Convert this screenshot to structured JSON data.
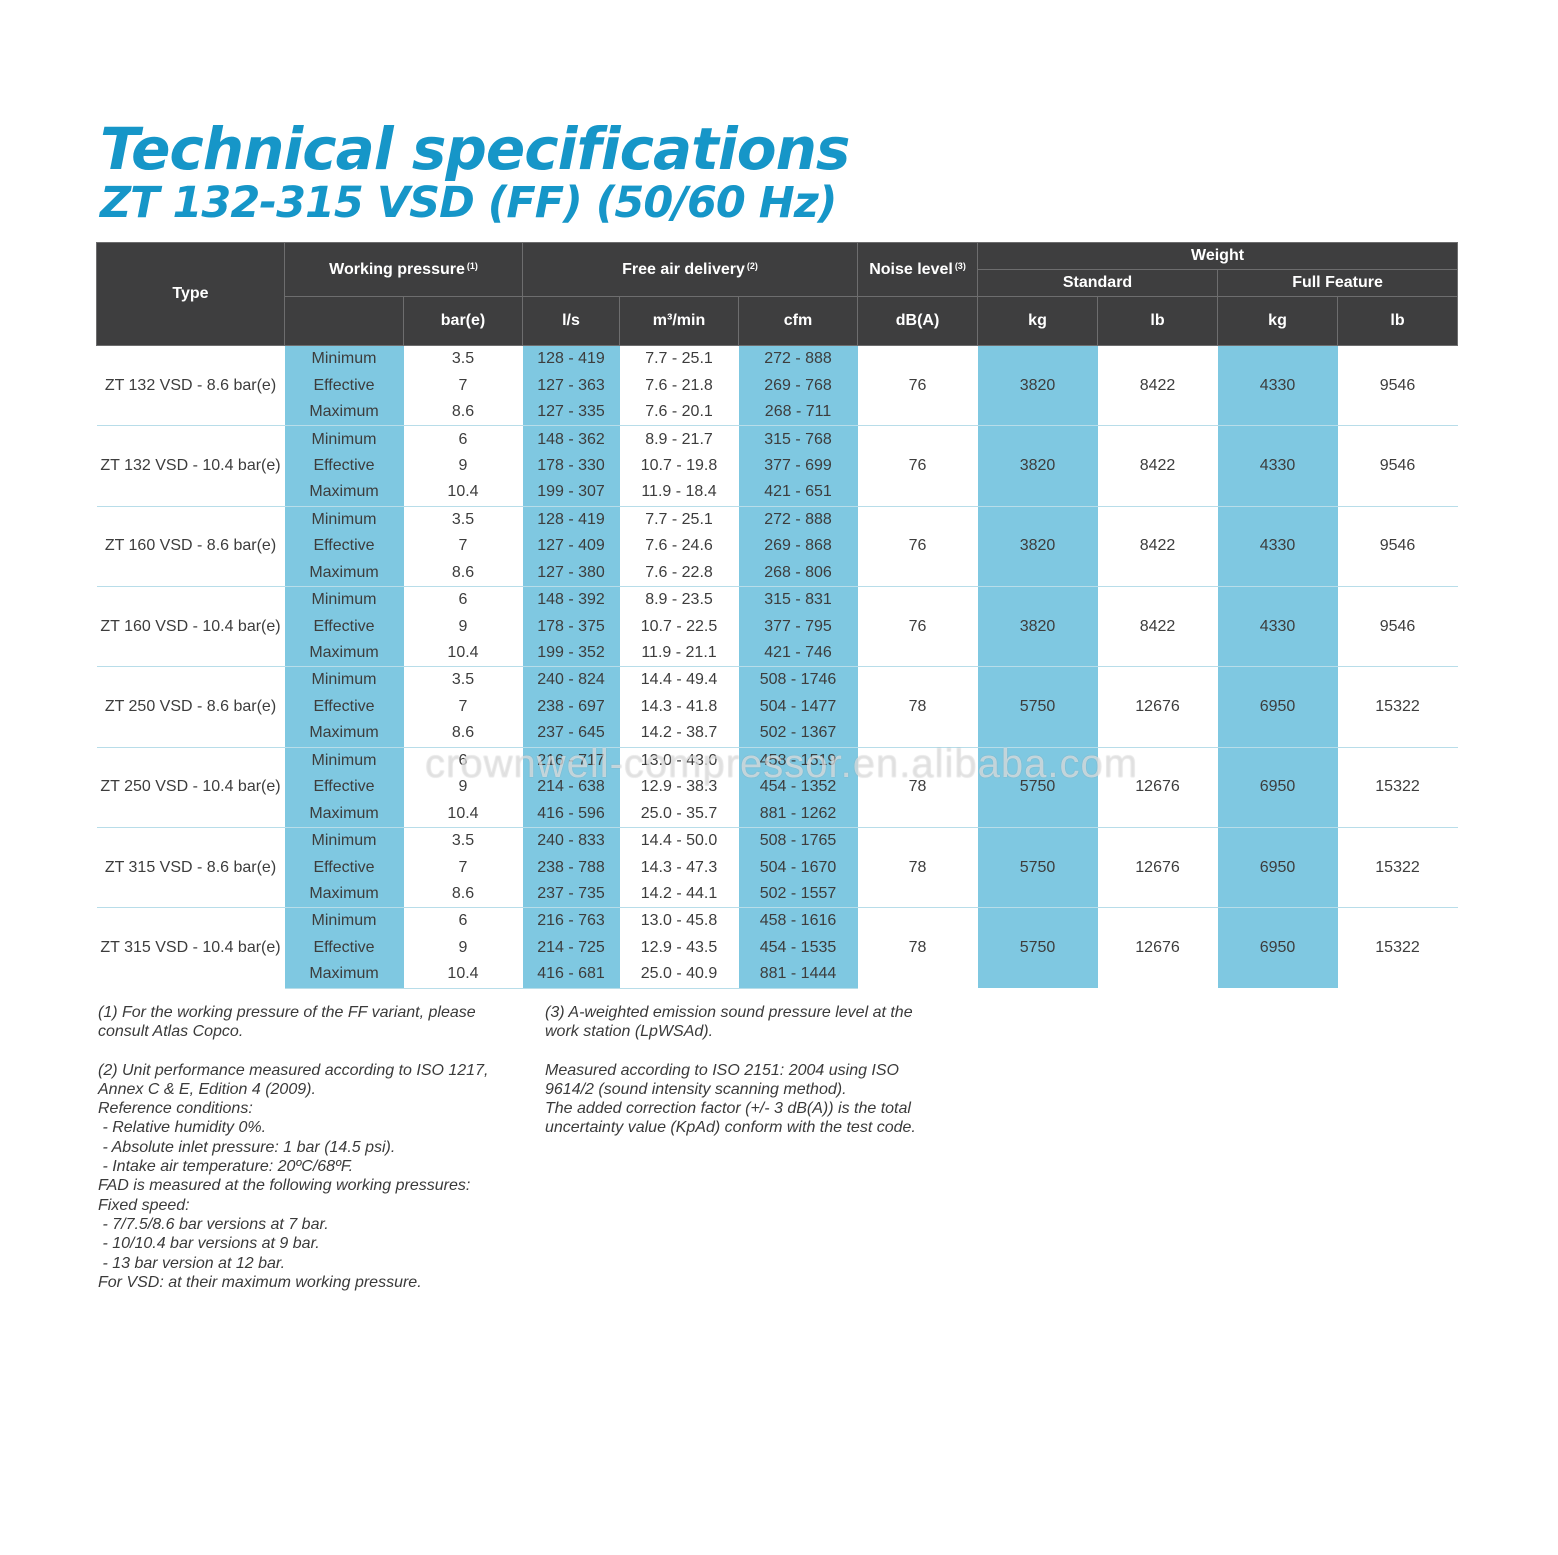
{
  "title": {
    "line1": "Technical specifications",
    "line2": "ZT 132-315 VSD (FF) (50/60 Hz)"
  },
  "header": {
    "type": "Type",
    "working_pressure": "Working pressure",
    "working_pressure_note": "(1)",
    "free_air_delivery": "Free air delivery",
    "free_air_delivery_note": "(2)",
    "noise_level": "Noise level",
    "noise_level_note": "(3)",
    "weight": "Weight",
    "standard": "Standard",
    "full_feature": "Full Feature",
    "unit_bar": "bar(e)",
    "unit_ls": "l/s",
    "unit_m3": "m³/min",
    "unit_cfm": "cfm",
    "unit_db": "dB(A)",
    "unit_kg_std": "kg",
    "unit_lb_std": "lb",
    "unit_kg_ff": "kg",
    "unit_lb_ff": "lb"
  },
  "models": [
    {
      "type": "ZT 132 VSD - 8.6 bar(e)",
      "noise": "76",
      "std_kg": "3820",
      "std_lb": "8422",
      "ff_kg": "4330",
      "ff_lb": "9546",
      "rows": [
        {
          "label": "Minimum",
          "bar": "3.5",
          "ls": "128 - 419",
          "m3": "7.7 - 25.1",
          "cfm": "272 - 888"
        },
        {
          "label": "Effective",
          "bar": "7",
          "ls": "127 - 363",
          "m3": "7.6 - 21.8",
          "cfm": "269 - 768"
        },
        {
          "label": "Maximum",
          "bar": "8.6",
          "ls": "127 - 335",
          "m3": "7.6 - 20.1",
          "cfm": "268 - 711"
        }
      ]
    },
    {
      "type": "ZT 132 VSD - 10.4 bar(e)",
      "noise": "76",
      "std_kg": "3820",
      "std_lb": "8422",
      "ff_kg": "4330",
      "ff_lb": "9546",
      "rows": [
        {
          "label": "Minimum",
          "bar": "6",
          "ls": "148 - 362",
          "m3": "8.9 - 21.7",
          "cfm": "315 - 768"
        },
        {
          "label": "Effective",
          "bar": "9",
          "ls": "178 - 330",
          "m3": "10.7 - 19.8",
          "cfm": "377 - 699"
        },
        {
          "label": "Maximum",
          "bar": "10.4",
          "ls": "199 - 307",
          "m3": "11.9 - 18.4",
          "cfm": "421 - 651"
        }
      ]
    },
    {
      "type": "ZT 160 VSD - 8.6 bar(e)",
      "noise": "76",
      "std_kg": "3820",
      "std_lb": "8422",
      "ff_kg": "4330",
      "ff_lb": "9546",
      "rows": [
        {
          "label": "Minimum",
          "bar": "3.5",
          "ls": "128 - 419",
          "m3": "7.7 - 25.1",
          "cfm": "272 - 888"
        },
        {
          "label": "Effective",
          "bar": "7",
          "ls": "127 - 409",
          "m3": "7.6 - 24.6",
          "cfm": "269 - 868"
        },
        {
          "label": "Maximum",
          "bar": "8.6",
          "ls": "127 - 380",
          "m3": "7.6 - 22.8",
          "cfm": "268 - 806"
        }
      ]
    },
    {
      "type": "ZT 160 VSD - 10.4 bar(e)",
      "noise": "76",
      "std_kg": "3820",
      "std_lb": "8422",
      "ff_kg": "4330",
      "ff_lb": "9546",
      "rows": [
        {
          "label": "Minimum",
          "bar": "6",
          "ls": "148 - 392",
          "m3": "8.9 - 23.5",
          "cfm": "315 - 831"
        },
        {
          "label": "Effective",
          "bar": "9",
          "ls": "178 - 375",
          "m3": "10.7 - 22.5",
          "cfm": "377 - 795"
        },
        {
          "label": "Maximum",
          "bar": "10.4",
          "ls": "199 - 352",
          "m3": "11.9 - 21.1",
          "cfm": "421 - 746"
        }
      ]
    },
    {
      "type": "ZT 250 VSD - 8.6 bar(e)",
      "noise": "78",
      "std_kg": "5750",
      "std_lb": "12676",
      "ff_kg": "6950",
      "ff_lb": "15322",
      "rows": [
        {
          "label": "Minimum",
          "bar": "3.5",
          "ls": "240 - 824",
          "m3": "14.4 - 49.4",
          "cfm": "508 - 1746"
        },
        {
          "label": "Effective",
          "bar": "7",
          "ls": "238 - 697",
          "m3": "14.3 - 41.8",
          "cfm": "504 - 1477"
        },
        {
          "label": "Maximum",
          "bar": "8.6",
          "ls": "237 - 645",
          "m3": "14.2 - 38.7",
          "cfm": "502 - 1367"
        }
      ]
    },
    {
      "type": "ZT 250 VSD - 10.4 bar(e)",
      "noise": "78",
      "std_kg": "5750",
      "std_lb": "12676",
      "ff_kg": "6950",
      "ff_lb": "15322",
      "rows": [
        {
          "label": "Minimum",
          "bar": "6",
          "ls": "216 - 717",
          "m3": "13.0 - 43.0",
          "cfm": "458 - 1519"
        },
        {
          "label": "Effective",
          "bar": "9",
          "ls": "214 - 638",
          "m3": "12.9 - 38.3",
          "cfm": "454 - 1352"
        },
        {
          "label": "Maximum",
          "bar": "10.4",
          "ls": "416 - 596",
          "m3": "25.0 - 35.7",
          "cfm": "881 - 1262"
        }
      ]
    },
    {
      "type": "ZT 315 VSD - 8.6 bar(e)",
      "noise": "78",
      "std_kg": "5750",
      "std_lb": "12676",
      "ff_kg": "6950",
      "ff_lb": "15322",
      "rows": [
        {
          "label": "Minimum",
          "bar": "3.5",
          "ls": "240 - 833",
          "m3": "14.4 - 50.0",
          "cfm": "508 - 1765"
        },
        {
          "label": "Effective",
          "bar": "7",
          "ls": "238 - 788",
          "m3": "14.3 - 47.3",
          "cfm": "504 - 1670"
        },
        {
          "label": "Maximum",
          "bar": "8.6",
          "ls": "237 - 735",
          "m3": "14.2 - 44.1",
          "cfm": "502 - 1557"
        }
      ]
    },
    {
      "type": "ZT 315 VSD - 10.4 bar(e)",
      "noise": "78",
      "std_kg": "5750",
      "std_lb": "12676",
      "ff_kg": "6950",
      "ff_lb": "15322",
      "rows": [
        {
          "label": "Minimum",
          "bar": "6",
          "ls": "216 - 763",
          "m3": "13.0 - 45.8",
          "cfm": "458 - 1616"
        },
        {
          "label": "Effective",
          "bar": "9",
          "ls": "214 - 725",
          "m3": "12.9 - 43.5",
          "cfm": "454 - 1535"
        },
        {
          "label": "Maximum",
          "bar": "10.4",
          "ls": "416 - 681",
          "m3": "25.0 - 40.9",
          "cfm": "881 - 1444"
        }
      ]
    }
  ],
  "notes_left": [
    "(1) For the working pressure of the FF variant, please",
    "consult Atlas Copco.",
    "",
    "(2) Unit performance measured according to ISO 1217,",
    "Annex C & E, Edition 4 (2009).",
    "Reference conditions:",
    " - Relative humidity 0%.",
    " - Absolute inlet pressure: 1 bar (14.5 psi).",
    " - Intake air temperature: 20ºC/68ºF.",
    "FAD is measured at the following working pressures:",
    "Fixed speed:",
    " - 7/7.5/8.6 bar versions at 7 bar.",
    " - 10/10.4 bar versions at 9 bar.",
    " - 13 bar version at 12 bar.",
    "For VSD: at their maximum working pressure."
  ],
  "notes_right": [
    "(3) A-weighted emission sound pressure level at the",
    "work station (LpWSAd).",
    "",
    "Measured according to ISO 2151: 2004 using ISO",
    "9614/2 (sound intensity scanning method).",
    "The added correction factor (+/- 3 dB(A)) is the total",
    "uncertainty value (KpAd) conform with the test code."
  ],
  "watermark": "crownwell-compressor.en.alibaba.com",
  "colors": {
    "title": "#1696c8",
    "header_bg": "#3e3e3f",
    "highlight": "#7fc8e1"
  }
}
